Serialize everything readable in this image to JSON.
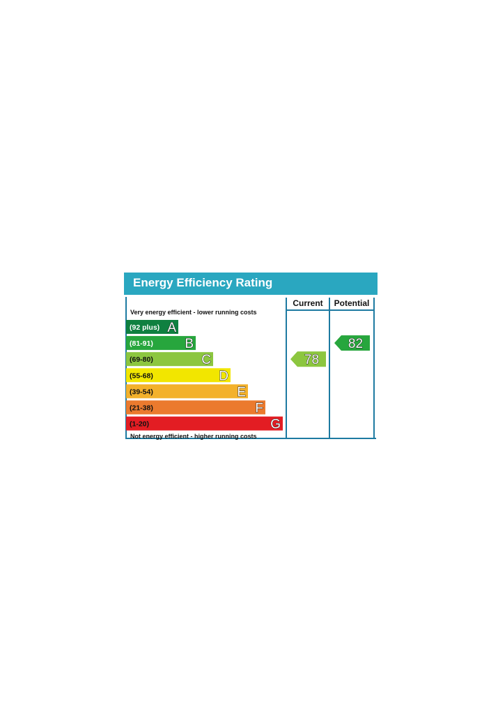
{
  "title": "Energy Efficiency Rating",
  "columns": {
    "current": "Current",
    "potential": "Potential"
  },
  "captions": {
    "top": "Very energy efficient - lower running costs",
    "bottom": "Not energy efficient - higher running costs"
  },
  "colors": {
    "title_bar": "#2aa7c0",
    "frame": "#1d7aa1"
  },
  "bands": [
    {
      "range": "(92 plus)",
      "letter": "A",
      "color": "#0f8040",
      "text_color": "#ffffff"
    },
    {
      "range": "(81-91)",
      "letter": "B",
      "color": "#27a63d",
      "text_color": "#ffffff"
    },
    {
      "range": "(69-80)",
      "letter": "C",
      "color": "#8cc63f",
      "text_color": "#111111"
    },
    {
      "range": "(55-68)",
      "letter": "D",
      "color": "#f2e600",
      "text_color": "#111111"
    },
    {
      "range": "(39-54)",
      "letter": "E",
      "color": "#f3b12b",
      "text_color": "#111111"
    },
    {
      "range": "(21-38)",
      "letter": "F",
      "color": "#eb7a2e",
      "text_color": "#111111"
    },
    {
      "range": "(1-20)",
      "letter": "G",
      "color": "#e31d23",
      "text_color": "#111111"
    }
  ],
  "current": {
    "value": "78",
    "band": "C",
    "color": "#8cc63f"
  },
  "potential": {
    "value": "82",
    "band": "B",
    "color": "#27a63d"
  }
}
